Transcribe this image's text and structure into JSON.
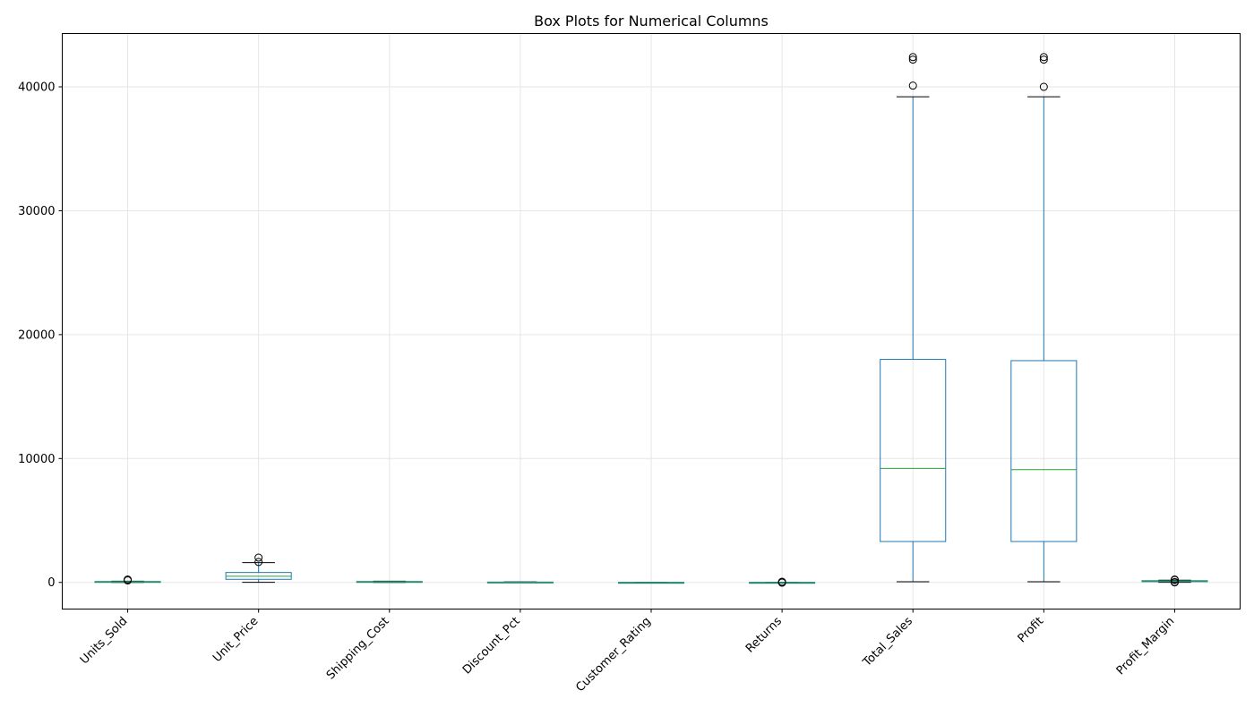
{
  "chart_data": {
    "type": "box",
    "title": "Box Plots for Numerical Columns",
    "xlabel": "",
    "ylabel": "",
    "ylim": [
      -2150,
      44300
    ],
    "yticks": [
      0,
      10000,
      20000,
      30000,
      40000
    ],
    "grid": true,
    "categories": [
      "Units_Sold",
      "Unit_Price",
      "Shipping_Cost",
      "Discount_Pct",
      "Customer_Rating",
      "Returns",
      "Total_Sales",
      "Profit",
      "Profit_Margin"
    ],
    "boxes": [
      {
        "name": "Units_Sold",
        "whisker_low": 1,
        "q1": 25,
        "median": 50,
        "q3": 75,
        "whisker_high": 100,
        "outliers": [
          160,
          230
        ]
      },
      {
        "name": "Unit_Price",
        "whisker_low": 10,
        "q1": 250,
        "median": 500,
        "q3": 800,
        "whisker_high": 1600,
        "outliers": [
          1650,
          2000
        ]
      },
      {
        "name": "Shipping_Cost",
        "whisker_low": 1,
        "q1": 25,
        "median": 50,
        "q3": 75,
        "whisker_high": 100,
        "outliers": []
      },
      {
        "name": "Discount_Pct",
        "whisker_low": 0,
        "q1": 10,
        "median": 20,
        "q3": 30,
        "whisker_high": 40,
        "outliers": []
      },
      {
        "name": "Customer_Rating",
        "whisker_low": 1,
        "q1": 2,
        "median": 3,
        "q3": 4,
        "whisker_high": 5,
        "outliers": []
      },
      {
        "name": "Returns",
        "whisker_low": 0,
        "q1": 1,
        "median": 2,
        "q3": 3,
        "whisker_high": 5,
        "outliers": [
          20,
          -20,
          50
        ]
      },
      {
        "name": "Total_Sales",
        "whisker_low": 50,
        "q1": 3300,
        "median": 9200,
        "q3": 18000,
        "whisker_high": 39200,
        "outliers": [
          40100,
          42200,
          42400
        ]
      },
      {
        "name": "Profit",
        "whisker_low": 50,
        "q1": 3300,
        "median": 9100,
        "q3": 17900,
        "whisker_high": 39200,
        "outliers": [
          40000,
          42200,
          42400
        ]
      },
      {
        "name": "Profit_Margin",
        "whisker_low": 10,
        "q1": 60,
        "median": 100,
        "q3": 140,
        "whisker_high": 180,
        "outliers": [
          0,
          30,
          200,
          230
        ]
      }
    ],
    "colors": {
      "box": "#1f77b4",
      "median": "#2ca02c",
      "whisker_cap": "#000000",
      "grid": "#e6e6e6"
    }
  }
}
